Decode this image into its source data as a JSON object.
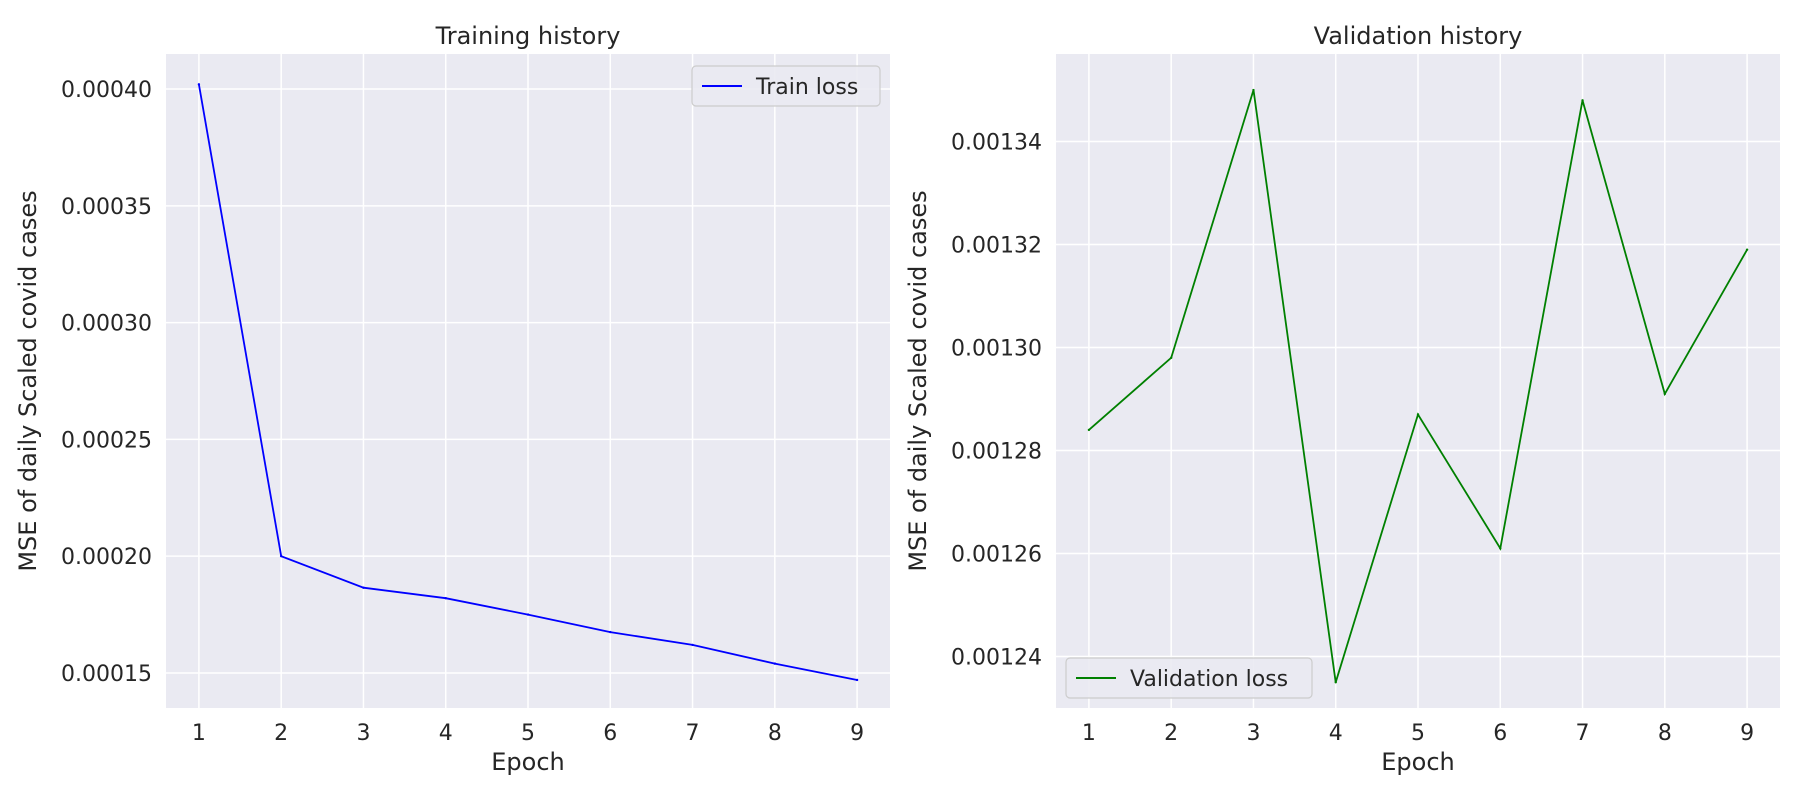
{
  "chart_data": [
    {
      "type": "line",
      "title": "Training history",
      "xlabel": "Epoch",
      "ylabel": "MSE of daily Scaled covid cases",
      "x": [
        1,
        2,
        3,
        4,
        5,
        6,
        7,
        8,
        9
      ],
      "xlim": [
        0.6,
        9.4
      ],
      "ylim": [
        0.000135,
        0.000415
      ],
      "xticks": [
        "1",
        "2",
        "3",
        "4",
        "5",
        "6",
        "7",
        "8",
        "9"
      ],
      "yticks": [
        0.00015,
        0.0002,
        0.00025,
        0.0003,
        0.00035,
        0.0004
      ],
      "ytick_labels": [
        "0.00015",
        "0.00020",
        "0.00025",
        "0.00030",
        "0.00035",
        "0.00040"
      ],
      "grid": true,
      "legend_position": "upper-right",
      "series": [
        {
          "name": "Train loss",
          "color": "#0000ff",
          "values": [
            0.000402,
            0.0002,
            0.0001865,
            0.000182,
            0.000175,
            0.0001675,
            0.000162,
            0.000154,
            0.000147
          ]
        }
      ]
    },
    {
      "type": "line",
      "title": "Validation history",
      "xlabel": "Epoch",
      "ylabel": "MSE of daily Scaled covid cases",
      "x": [
        1,
        2,
        3,
        4,
        5,
        6,
        7,
        8,
        9
      ],
      "xlim": [
        0.6,
        9.4
      ],
      "ylim": [
        0.00123,
        0.001357
      ],
      "xticks": [
        "1",
        "2",
        "3",
        "4",
        "5",
        "6",
        "7",
        "8",
        "9"
      ],
      "yticks": [
        0.00124,
        0.00126,
        0.00128,
        0.0013,
        0.00132,
        0.00134
      ],
      "ytick_labels": [
        "0.00124",
        "0.00126",
        "0.00128",
        "0.00130",
        "0.00132",
        "0.00134"
      ],
      "grid": true,
      "legend_position": "lower-left",
      "series": [
        {
          "name": "Validation loss",
          "color": "#008000",
          "values": [
            0.001284,
            0.001298,
            0.00135,
            0.001235,
            0.001287,
            0.001261,
            0.001348,
            0.001291,
            0.001319
          ]
        }
      ]
    }
  ]
}
